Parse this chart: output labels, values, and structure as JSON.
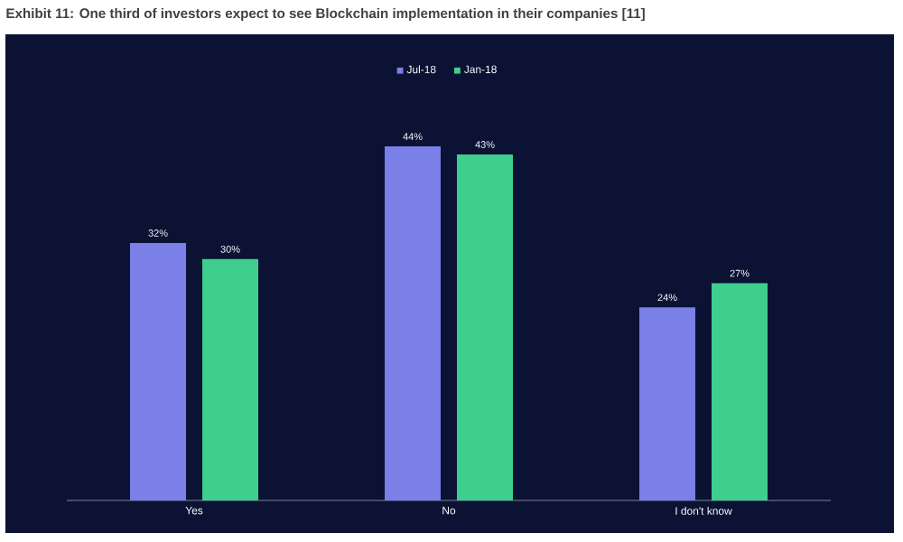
{
  "chart_data": {
    "type": "bar",
    "title": "Exhibit 11: One third of investors expect to see Blockchain implementation in their companies [11]",
    "categories": [
      "Yes",
      "No",
      "I don't know"
    ],
    "series": [
      {
        "name": "Jul-18",
        "color": "#7b7fe8",
        "values": [
          32,
          44,
          24
        ],
        "value_labels": [
          "32%",
          "44%",
          "24%"
        ]
      },
      {
        "name": "Jan-18",
        "color": "#3ecf8e",
        "values": [
          30,
          43,
          27
        ],
        "value_labels": [
          "30%",
          "43%",
          "27%"
        ]
      }
    ],
    "legend": "top"
  }
}
